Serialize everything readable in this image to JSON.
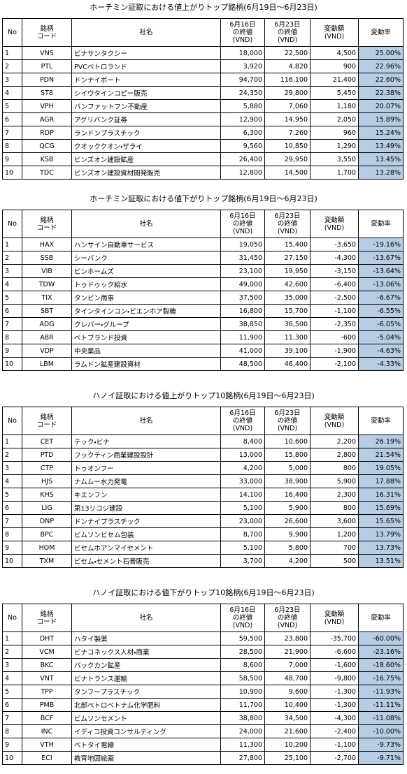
{
  "tables": [
    {
      "title": "ホーチミン証取における値上がりトップ銘柄(6月19日～6月23日)",
      "header": [
        "No",
        "銘柄\nコード",
        "社名",
        "6月16日\nの終値\n(VND)",
        "6月23日\nの終値\n(VND)",
        "変動額\n(VND)",
        "変動率"
      ],
      "rows": [
        [
          "1",
          "VNS",
          "ビナサンタクシー",
          "18,000",
          "22,500",
          "4,500",
          "25.00%"
        ],
        [
          "2",
          "PTL",
          "PVCペトロランド",
          "3,920",
          "4,820",
          "900",
          "22.96%"
        ],
        [
          "3",
          "PDN",
          "ドンナイポート",
          "94,700",
          "116,100",
          "21,400",
          "22.60%"
        ],
        [
          "4",
          "ST8",
          "シイウタインコピー販売",
          "24,350",
          "29,800",
          "5,450",
          "22.38%"
        ],
        [
          "5",
          "VPH",
          "バンファットフン不動産",
          "5,880",
          "7,060",
          "1,180",
          "20.07%"
        ],
        [
          "6",
          "AGR",
          "アグリバンク証券",
          "12,900",
          "14,950",
          "2,050",
          "15.89%"
        ],
        [
          "7",
          "RDP",
          "ランドンプラスチック",
          "6,300",
          "7,260",
          "960",
          "15.24%"
        ],
        [
          "8",
          "QCG",
          "クオッククオン・ザライ",
          "9,560",
          "10,850",
          "1,290",
          "13.49%"
        ],
        [
          "9",
          "KSB",
          "ビンズオン建設鉱産",
          "26,400",
          "29,950",
          "3,550",
          "13.45%"
        ],
        [
          "10",
          "TDC",
          "ビンズオン建設資材開発販売",
          "12,800",
          "14,500",
          "1,700",
          "13.28%"
        ]
      ]
    },
    {
      "title": "ホーチミン証取における値下がりトップ銘柄(6月19日～6月23日)",
      "header": [
        "No",
        "銘柄\nコード",
        "社名",
        "6月16日\nの終値\n(VND)",
        "6月23日\nの終値\n(VND)",
        "変動額\n(VND)",
        "変動率"
      ],
      "rows": [
        [
          "1",
          "HAX",
          "ハンサイン自動車サービス",
          "19,050",
          "15,400",
          "-3,650",
          "-19.16%"
        ],
        [
          "2",
          "SSB",
          "シーバンク",
          "31,450",
          "27,150",
          "-4,300",
          "-13.67%"
        ],
        [
          "3",
          "VIB",
          "ビンホームズ",
          "23,100",
          "19,950",
          "-3,150",
          "-13.64%"
        ],
        [
          "4",
          "TDW",
          "トゥドゥック給水",
          "49,000",
          "42,600",
          "-6,400",
          "-13.06%"
        ],
        [
          "5",
          "TIX",
          "タンビン商事",
          "37,500",
          "35,000",
          "-2,500",
          "-6.67%"
        ],
        [
          "6",
          "SBT",
          "タインタインコン・ビエンホア製糖",
          "16,800",
          "15,700",
          "-1,100",
          "-6.55%"
        ],
        [
          "7",
          "ADG",
          "クレバー・グループ",
          "38,850",
          "36,500",
          "-2,350",
          "-6.05%"
        ],
        [
          "8",
          "ABR",
          "ベトブランド投資",
          "11,900",
          "11,300",
          "-600",
          "-5.04%"
        ],
        [
          "9",
          "VDP",
          "中央薬品",
          "41,000",
          "39,100",
          "-1,900",
          "-4.63%"
        ],
        [
          "10",
          "LBM",
          "ラムドン鉱産建設資材",
          "48,500",
          "46,400",
          "-2,100",
          "-4.33%"
        ]
      ]
    },
    {
      "title": "ハノイ証取における値上がりトップ10銘柄(6月19日～6月23日)",
      "header": [
        "No",
        "銘柄\nコード",
        "社名",
        "6月16日\nの終値\n(VND)",
        "6月23日\nの終値\n(VND)",
        "変動額\n(VND)",
        "変動率"
      ],
      "rows": [
        [
          "1",
          "CET",
          "テック・ビナ",
          "8,400",
          "10,600",
          "2,200",
          "26.19%"
        ],
        [
          "2",
          "PTD",
          "フックティン商業建設設計",
          "13,000",
          "15,800",
          "2,800",
          "21.54%"
        ],
        [
          "3",
          "CTP",
          "トゥオンフー",
          "4,200",
          "5,000",
          "800",
          "19.05%"
        ],
        [
          "4",
          "HJS",
          "ナムムー水力発電",
          "33,000",
          "38,900",
          "5,900",
          "17.88%"
        ],
        [
          "5",
          "KHS",
          "キエンフン",
          "14,100",
          "16,400",
          "2,300",
          "16.31%"
        ],
        [
          "6",
          "LIG",
          "第13リコジ建設",
          "5,100",
          "5,900",
          "800",
          "15.69%"
        ],
        [
          "7",
          "DNP",
          "ドンナイプラスチック",
          "23,000",
          "26,600",
          "3,600",
          "15.65%"
        ],
        [
          "8",
          "BPC",
          "ビムソンビセム包装",
          "8,700",
          "9,900",
          "1,200",
          "13.79%"
        ],
        [
          "9",
          "HOM",
          "ビセムホアンマイセメント",
          "5,100",
          "5,800",
          "700",
          "13.73%"
        ],
        [
          "10",
          "TXM",
          "ビセム・セメント石膏販売",
          "3,700",
          "4,200",
          "500",
          "13.51%"
        ]
      ]
    },
    {
      "title": "ハノイ証取における値下がりトップ10銘柄(6月19日～6月23日)",
      "header": [
        "No",
        "銘柄\nコード",
        "社名",
        "6月16日\nの終値\n(VND)",
        "6月23日\nの終値\n(VND)",
        "変動額\n(VND)",
        "変動率"
      ],
      "rows": [
        [
          "1",
          "DHT",
          "ハタイ製薬",
          "59,500",
          "23,800",
          "-35,700",
          "-60.00%"
        ],
        [
          "2",
          "VCM",
          "ビナコネックス人材・商業",
          "28,500",
          "21,900",
          "-6,600",
          "-23.16%"
        ],
        [
          "3",
          "BKC",
          "バックカン鉱産",
          "8,600",
          "7,000",
          "-1,600",
          "-18.60%"
        ],
        [
          "4",
          "VNT",
          "ビナトランス運輸",
          "58,500",
          "48,700",
          "-9,800",
          "-16.75%"
        ],
        [
          "5",
          "TPP",
          "タンフープラスチック",
          "10,900",
          "9,600",
          "-1,300",
          "-11.93%"
        ],
        [
          "6",
          "PMB",
          "北部ペトロベトナム化学肥料",
          "11,700",
          "10,400",
          "-1,300",
          "-11.11%"
        ],
        [
          "7",
          "BCF",
          "ビムソンセメント",
          "38,800",
          "34,500",
          "-4,300",
          "-11.08%"
        ],
        [
          "8",
          "INC",
          "イディコ投資コンサルティング",
          "24,000",
          "21,600",
          "-2,400",
          "-10.00%"
        ],
        [
          "9",
          "VTH",
          "ベトタイ電線",
          "11,300",
          "10,200",
          "-1,100",
          "-9.73%"
        ],
        [
          "10",
          "ECI",
          "教育地図絵画",
          "27,800",
          "25,100",
          "-2,700",
          "-9.71%"
        ]
      ]
    }
  ]
}
